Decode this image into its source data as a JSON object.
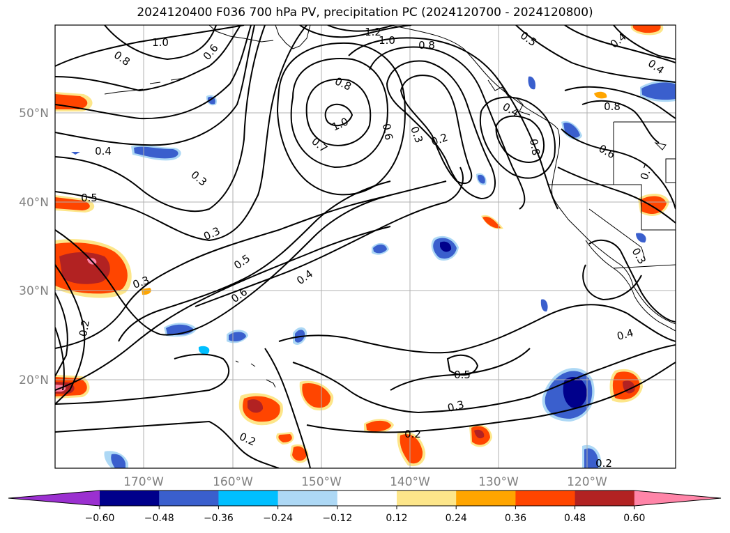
{
  "title": "2024120400 F036 700 hPa PV, precipitation PC (2024120700 - 2024120800)",
  "lat_labels": [
    "50°N",
    "40°N",
    "30°N",
    "20°N"
  ],
  "lon_labels": [
    "170°W",
    "160°W",
    "150°W",
    "140°W",
    "130°W",
    "120°W"
  ],
  "contour_labels": [
    {
      "text": "1.0"
    },
    {
      "text": "1.2"
    },
    {
      "text": "1.0"
    },
    {
      "text": "0.8"
    },
    {
      "text": "0.8"
    },
    {
      "text": "0.6"
    },
    {
      "text": "0.5"
    },
    {
      "text": "0.4"
    },
    {
      "text": "0.4"
    },
    {
      "text": "0.8"
    },
    {
      "text": "1.0"
    },
    {
      "text": "0.7"
    },
    {
      "text": "0.6"
    },
    {
      "text": "0.3"
    },
    {
      "text": "0.2"
    },
    {
      "text": "0.4"
    },
    {
      "text": "0.8"
    },
    {
      "text": "0.8"
    },
    {
      "text": "0.6"
    },
    {
      "text": "0.7"
    },
    {
      "text": "0.4"
    },
    {
      "text": "0.3"
    },
    {
      "text": "0.5"
    },
    {
      "text": "0.3"
    },
    {
      "text": "0.5"
    },
    {
      "text": "0.4"
    },
    {
      "text": "0.3"
    },
    {
      "text": "0.6"
    },
    {
      "text": "0.2"
    },
    {
      "text": "0.3"
    },
    {
      "text": "0.4"
    },
    {
      "text": "0.5"
    },
    {
      "text": "0.3"
    },
    {
      "text": "0.2"
    },
    {
      "text": "0.2"
    },
    {
      "text": "0.2"
    }
  ],
  "colorbar": {
    "ticks": [
      "−0.60",
      "−0.48",
      "−0.36",
      "−0.24",
      "−0.12",
      "0.12",
      "0.24",
      "0.36",
      "0.48",
      "0.60"
    ],
    "colors": [
      "#9b30d0",
      "#00008b",
      "#3a5fcd",
      "#00bfff",
      "#add8f5",
      "#ffffff",
      "#fde68a",
      "#ffa500",
      "#ff4500",
      "#b22222",
      "#ff85a8"
    ]
  },
  "colors": {
    "grid": "#b0b0b0",
    "contour": "#000000",
    "coast": "#000000"
  }
}
